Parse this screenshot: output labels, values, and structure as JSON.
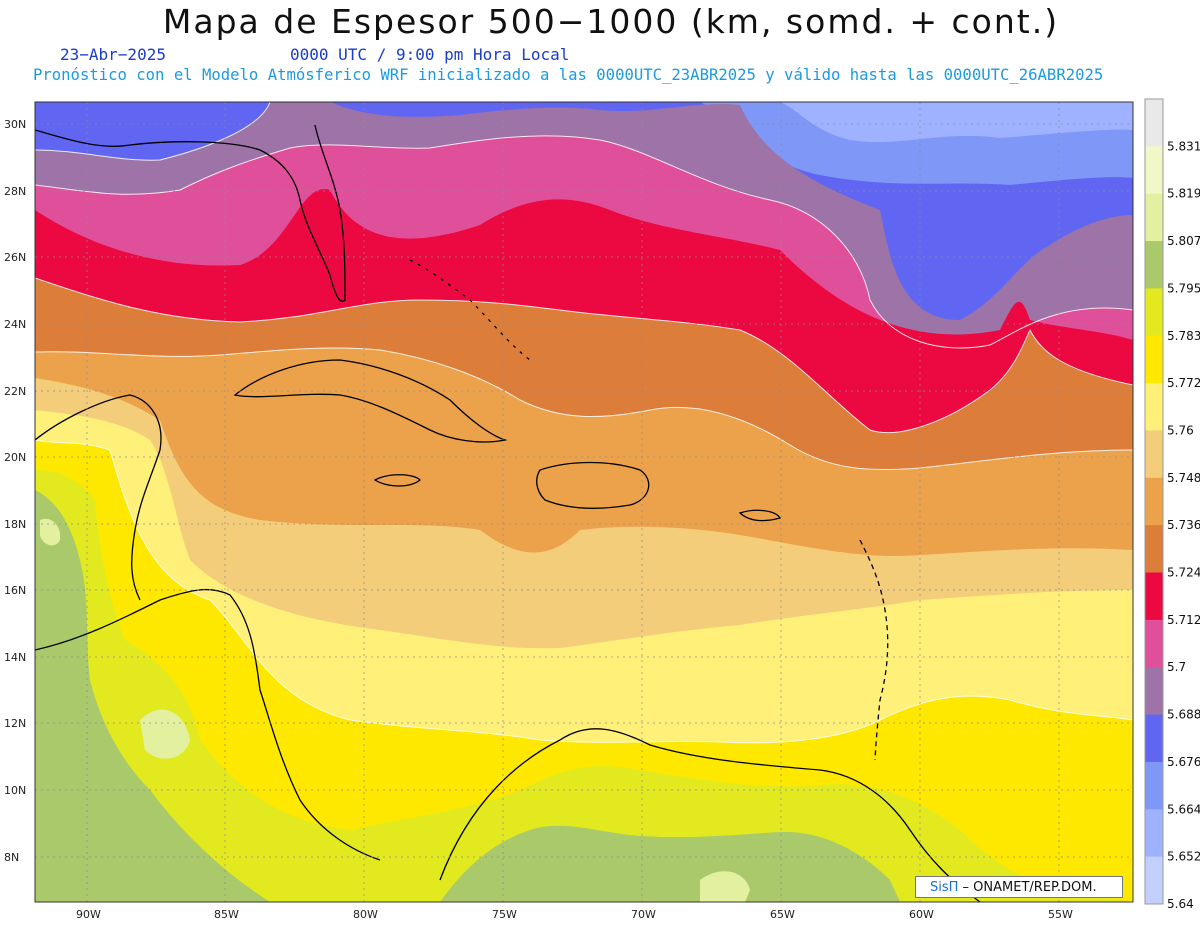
{
  "title": "Mapa de Espesor 500−1000 (km, somd. + cont.)",
  "date_label": "23−Abr−2025",
  "time_label": "0000 UTC / 9:00 pm Hora Local",
  "info_label": "Pronóstico con el Modelo Atmósferico WRF inicializado a las 0000UTC_23ABR2025 y válido hasta las  0000UTC_26ABR2025",
  "credit": {
    "logo": "SisΠ",
    "text": " – ONAMET/REP.DOM."
  },
  "lat_labels": [
    "30N",
    "28N",
    "26N",
    "24N",
    "22N",
    "20N",
    "18N",
    "16N",
    "14N",
    "12N",
    "10N",
    "8N"
  ],
  "lon_labels": [
    "90W",
    "85W",
    "80W",
    "75W",
    "70W",
    "65W",
    "60W",
    "55W"
  ],
  "colorbar": {
    "labels": [
      "5.831",
      "5.819",
      "5.807",
      "5.795",
      "5.783",
      "5.772",
      "5.76",
      "5.748",
      "5.736",
      "5.724",
      "5.712",
      "5.7",
      "5.688",
      "5.676",
      "5.664",
      "5.652",
      "5.64"
    ],
    "colors": [
      "#e9e9e9",
      "#f2f7c8",
      "#e2f0a0",
      "#a9c96a",
      "#e2ea1f",
      "#ffe800",
      "#fff07a",
      "#f3cd7a",
      "#eca24a",
      "#dc7d3a",
      "#ec0841",
      "#e0509a",
      "#9d73a8",
      "#6066f2",
      "#7f97f7",
      "#9fb2ff",
      "#c3cfff"
    ]
  },
  "colors": {
    "c5652": "#9fb2ff",
    "c5664": "#7f97f7",
    "c5676": "#6066f2",
    "c5688": "#9d73a8",
    "c5700": "#e0509a",
    "c5712": "#ec0841",
    "c5724": "#dc7d3a",
    "c5736": "#eca24a",
    "c5748": "#f3cd7a",
    "c5760": "#fff07a",
    "c5772": "#ffe800",
    "c5783": "#e2ea1f",
    "c5795": "#a9c96a",
    "c5807": "#e2f0a0",
    "c5819": "#f2f7c8"
  }
}
